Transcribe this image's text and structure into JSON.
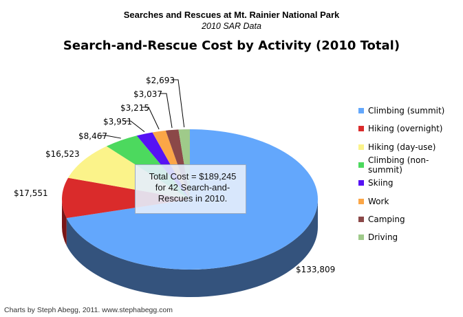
{
  "header": {
    "title": "Searches and Rescues at Mt. Rainier National Park",
    "subtitle": "2010 SAR Data",
    "chart_title": "Search-and-Rescue Cost by Activity (2010 Total)"
  },
  "chart_data": {
    "type": "pie",
    "style": "3d",
    "title": "Search-and-Rescue Cost by Activity (2010 Total)",
    "legend_position": "right",
    "slices": [
      {
        "name": "Climbing (summit)",
        "value": 133809,
        "label": "$133,809",
        "color": "#63a7fc",
        "side_color": "#34537d"
      },
      {
        "name": "Hiking (overnight)",
        "value": 17551,
        "label": "$17,551",
        "color": "#da2b2b",
        "side_color": "#7a1616"
      },
      {
        "name": "Hiking (day-use)",
        "value": 16523,
        "label": "$16,523",
        "color": "#fbf38a",
        "side_color": "#8e8948"
      },
      {
        "name": "Climbing (non-summit)",
        "value": 8467,
        "label": "$8,467",
        "color": "#4cd95e",
        "side_color": "#2a7a33"
      },
      {
        "name": "Skiing",
        "value": 3951,
        "label": "$3,951",
        "color": "#5612f4",
        "side_color": "#2e0a86"
      },
      {
        "name": "Work",
        "value": 3215,
        "label": "$3,215",
        "color": "#fba647",
        "side_color": "#8a5a25"
      },
      {
        "name": "Camping",
        "value": 3037,
        "label": "$3,037",
        "color": "#8b4848",
        "side_color": "#4b2626"
      },
      {
        "name": "Driving",
        "value": 2693,
        "label": "$2,693",
        "color": "#9fca8a",
        "side_color": "#567048"
      }
    ]
  },
  "callout": {
    "line1": "Total Cost = $189,245",
    "line2": "for 42 Search-and-",
    "line3": "Rescues in 2010."
  },
  "footer": "Charts by Steph Abegg, 2011. www.stephabegg.com"
}
